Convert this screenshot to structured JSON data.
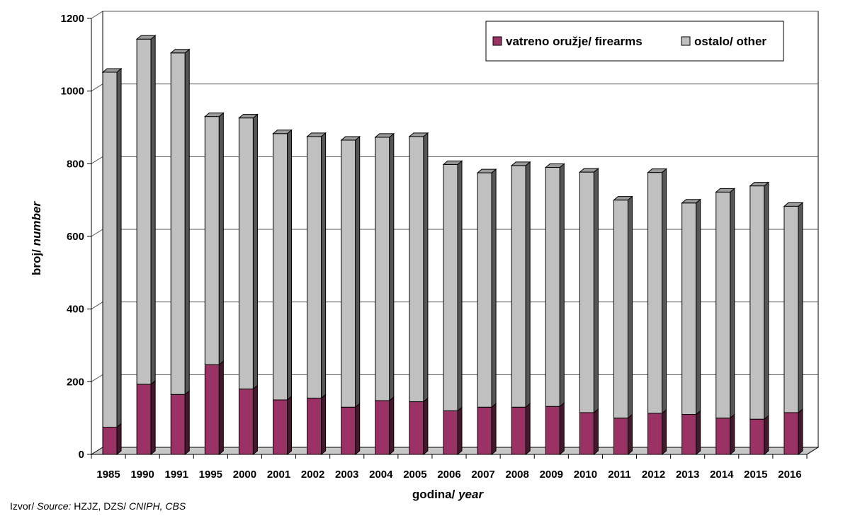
{
  "chart_data": {
    "type": "bar",
    "stacked": true,
    "three_d": true,
    "categories": [
      "1985",
      "1990",
      "1991",
      "1995",
      "2000",
      "2001",
      "2002",
      "2003",
      "2004",
      "2005",
      "2006",
      "2007",
      "2008",
      "2009",
      "2010",
      "2011",
      "2012",
      "2013",
      "2014",
      "2015",
      "2016"
    ],
    "series": [
      {
        "name": "vatreno oružje/ firearms",
        "color": "#9b3265",
        "values": [
          75,
          193,
          165,
          247,
          180,
          150,
          155,
          130,
          148,
          145,
          120,
          130,
          130,
          132,
          115,
          100,
          113,
          110,
          100,
          97,
          115
        ]
      },
      {
        "name": "ostalo/ other",
        "color": "#c0c0c0",
        "values": [
          977,
          950,
          940,
          683,
          746,
          733,
          720,
          735,
          725,
          730,
          678,
          645,
          665,
          658,
          662,
          600,
          663,
          582,
          622,
          642,
          568
        ]
      }
    ],
    "ylim": [
      0,
      1200
    ],
    "yticks": [
      0,
      200,
      400,
      600,
      800,
      1000,
      1200
    ],
    "xlabel": {
      "normal": "godina/ ",
      "italic": "year"
    },
    "ylabel": {
      "normal": "broj/ ",
      "italic": "number"
    },
    "legend": {
      "placement": "top-right"
    },
    "grid": true
  },
  "source": {
    "label_normal": "Izvor/ ",
    "label_italic": "Source:",
    "text_normal": " HZJZ, DZS/ ",
    "text_italic": "CNIPH, CBS"
  }
}
